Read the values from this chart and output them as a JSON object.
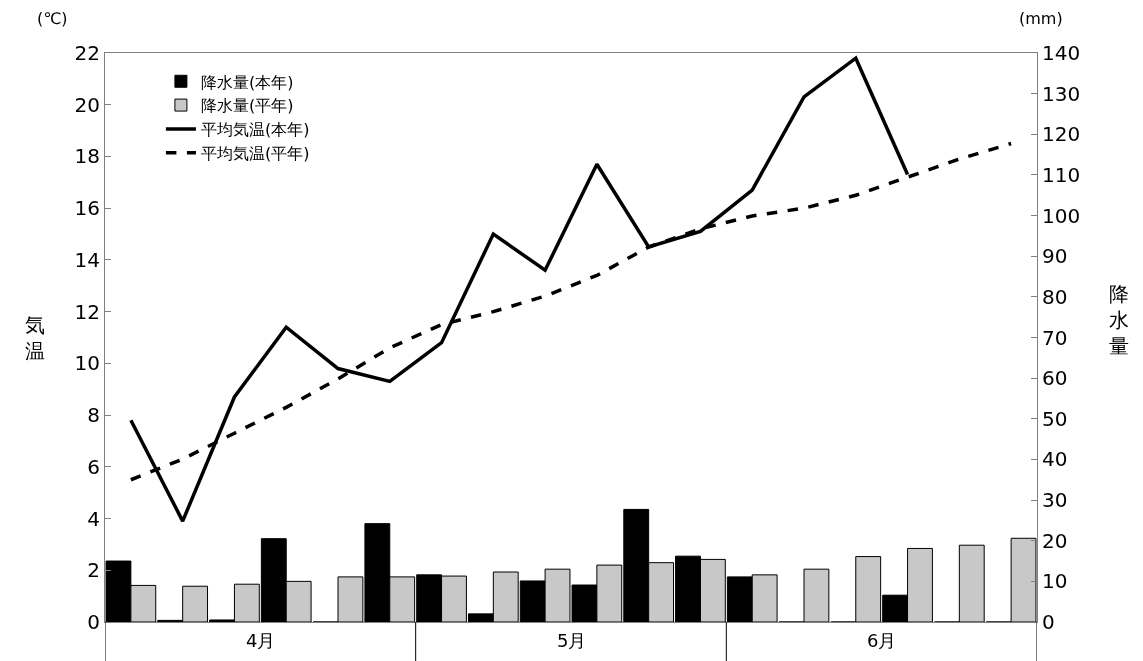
{
  "chart_data": {
    "type": "bar",
    "categories": [
      null,
      null,
      null,
      null,
      null,
      null,
      null,
      null,
      null,
      null,
      null,
      null,
      null,
      null,
      null,
      null,
      null,
      null
    ],
    "series": [
      {
        "name": "降水量(本年)",
        "axis": "y2",
        "color": "#000000",
        "values": [
          15,
          0.4,
          0.5,
          20.5,
          0,
          24.2,
          11.6,
          2,
          10.1,
          9.1,
          27.7,
          16.2,
          11.1,
          0,
          0,
          6.6,
          0,
          0
        ]
      },
      {
        "name": "降水量(平年)",
        "axis": "y2",
        "color": "#c8c8c8",
        "values": [
          9,
          8.8,
          9.3,
          10,
          11.1,
          11.1,
          11.3,
          12.3,
          13,
          14,
          14.6,
          15.4,
          11.6,
          13,
          16.1,
          18.1,
          18.9,
          20.6
        ]
      },
      {
        "name": "平均気温(本年)",
        "type": "line",
        "color": "#000000",
        "line_style": "solid",
        "values": [
          7.8,
          3.9,
          8.7,
          11.4,
          9.8,
          9.3,
          10.8,
          15,
          13.6,
          17.7,
          14.5,
          15.1,
          16.7,
          20.3,
          21.8,
          17.3,
          null,
          null
        ]
      },
      {
        "name": "平均気温(平年)",
        "type": "line",
        "color": "#000000",
        "line_style": "dashed",
        "values": [
          5.5,
          6.3,
          7.3,
          8.3,
          9.4,
          10.6,
          11.5,
          12,
          12.6,
          13.4,
          14.5,
          15.2,
          15.7,
          16,
          16.5,
          17.2,
          17.9,
          18.5
        ]
      }
    ],
    "ylabel": "気温",
    "y2label": "降水量",
    "ylim": [
      0,
      22
    ],
    "yticks": [
      0,
      2,
      4,
      6,
      8,
      10,
      12,
      14,
      16,
      18,
      20,
      22
    ],
    "y2lim": [
      0,
      140
    ],
    "y2ticks": [
      0,
      10,
      20,
      30,
      40,
      50,
      60,
      70,
      80,
      90,
      100,
      110,
      120,
      130,
      140
    ],
    "annotations": [
      "(℃)",
      "(mm)",
      "4月",
      "5月",
      "6月"
    ],
    "grid": false,
    "legend": "top left",
    "marker": "none"
  }
}
